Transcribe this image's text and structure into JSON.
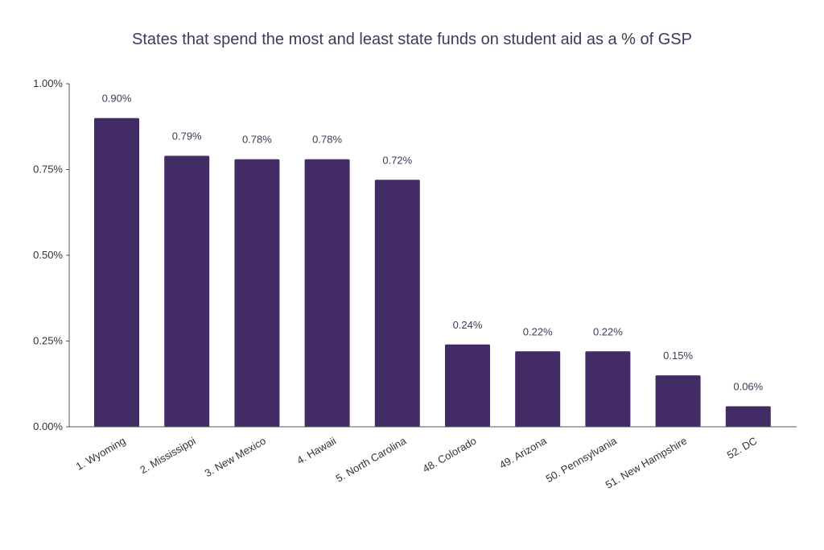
{
  "chart_data": {
    "type": "bar",
    "title": "States that spend the most and least state funds on student aid as a % of GSP",
    "xlabel": "",
    "ylabel": "",
    "categories": [
      "1. Wyoming",
      "2. Mississippi",
      "3. New Mexico",
      "4. Hawaii",
      "5. North Carolina",
      "48. Colorado",
      "49. Arizona",
      "50. Pennsylvania",
      "51. New Hampshire",
      "52. DC"
    ],
    "values": [
      0.9,
      0.79,
      0.78,
      0.78,
      0.72,
      0.24,
      0.22,
      0.22,
      0.15,
      0.06
    ],
    "data_labels": [
      "0.90%",
      "0.79%",
      "0.78%",
      "0.78%",
      "0.72%",
      "0.24%",
      "0.22%",
      "0.22%",
      "0.15%",
      "0.06%"
    ],
    "ylim": [
      0,
      1.0
    ],
    "yticks": [
      0,
      0.25,
      0.5,
      0.75,
      1.0
    ],
    "ytick_labels": [
      "0.00%",
      "0.25%",
      "0.50%",
      "0.75%",
      "1.00%"
    ],
    "grid": false,
    "legend": "none",
    "colors": {
      "bar": "#432c66",
      "axis": "#555555"
    }
  }
}
